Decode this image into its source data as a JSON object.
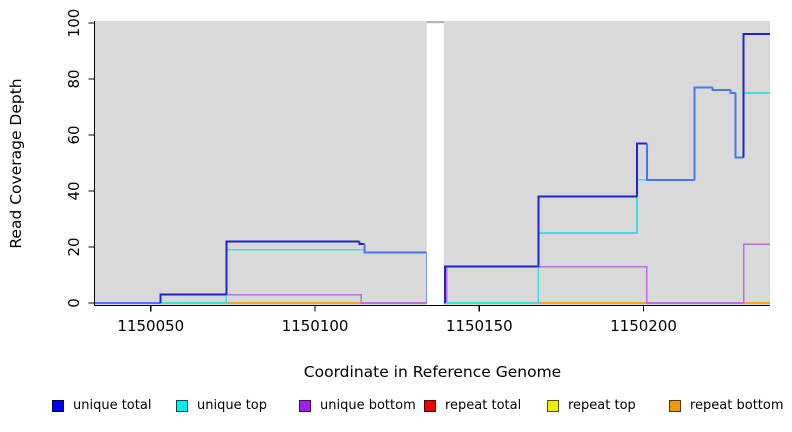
{
  "chart_data": {
    "type": "line",
    "subtype": "step-coverage",
    "title": "",
    "xlabel": "Coordinate in Reference Genome",
    "ylabel": "Read Coverage Depth",
    "xlim": [
      1150033,
      1150238.5
    ],
    "ylim": [
      0,
      100
    ],
    "x_ticks": [
      1150050,
      1150100,
      1150150,
      1150200
    ],
    "y_ticks": [
      0,
      20,
      40,
      60,
      80,
      100
    ],
    "plot_background": "#d9d9d9",
    "grid": false,
    "legend_position": "bottom",
    "gap_region": {
      "x_start": 1150134,
      "x_end": 1150139.2
    },
    "series": [
      {
        "name": "unique total",
        "color": "#2323CE",
        "overlap_color": "#4678EB",
        "legend_swatch": "#0000EE",
        "steps": [
          [
            1150033,
            0
          ],
          [
            1150053,
            3
          ],
          [
            1150073,
            22
          ],
          [
            1150113.5,
            21
          ],
          [
            1150115,
            18
          ],
          [
            1150134,
            0
          ],
          [
            1150139.5,
            13
          ],
          [
            1150168,
            38
          ],
          [
            1150198,
            57
          ],
          [
            1150201,
            44
          ],
          [
            1150215.5,
            77
          ],
          [
            1150221,
            76
          ],
          [
            1150226.5,
            75
          ],
          [
            1150228,
            52
          ],
          [
            1150230.5,
            96
          ]
        ]
      },
      {
        "name": "unique top",
        "color": "#3FDEDE",
        "legend_swatch": "#00EEEE",
        "steps": [
          [
            1150033,
            0
          ],
          [
            1150073,
            19
          ],
          [
            1150115,
            18
          ],
          [
            1150134,
            0
          ],
          [
            1150168,
            25
          ],
          [
            1150198,
            44
          ],
          [
            1150215.5,
            77
          ],
          [
            1150221,
            76
          ],
          [
            1150226.5,
            75
          ],
          [
            1150228,
            52
          ],
          [
            1150230.5,
            75
          ]
        ]
      },
      {
        "name": "unique bottom",
        "color": "#C06ADE",
        "legend_swatch": "#A020F0",
        "steps": [
          [
            1150033,
            0
          ],
          [
            1150073,
            3
          ],
          [
            1150114,
            0
          ],
          [
            1150140,
            13
          ],
          [
            1150201,
            0
          ],
          [
            1150230.5,
            21
          ]
        ]
      },
      {
        "name": "repeat total",
        "color": "#DC2828",
        "legend_swatch": "#EE0000",
        "steps": [
          [
            1150033,
            0
          ]
        ]
      },
      {
        "name": "repeat top",
        "color": "#EFEF00",
        "legend_swatch": "#EEEE00",
        "steps": [
          [
            1150033,
            0
          ]
        ]
      },
      {
        "name": "repeat bottom",
        "color": "#FFA028",
        "legend_swatch": "#EE9900",
        "steps": [
          [
            1150033,
            0
          ]
        ]
      }
    ]
  }
}
